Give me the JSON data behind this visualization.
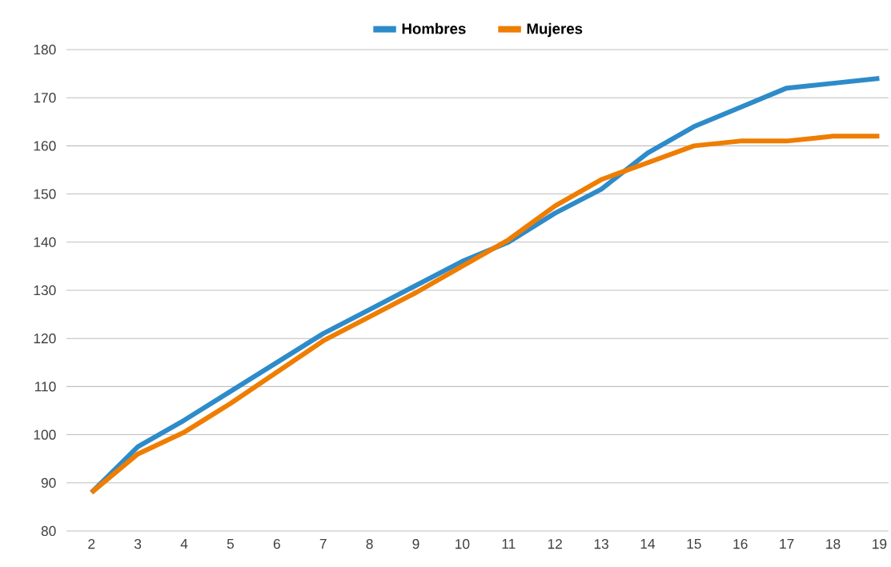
{
  "chart_data": {
    "type": "line",
    "categories": [
      "2",
      "3",
      "4",
      "5",
      "6",
      "7",
      "8",
      "9",
      "10",
      "11",
      "12",
      "13",
      "14",
      "15",
      "16",
      "17",
      "18",
      "19"
    ],
    "series": [
      {
        "name": "Hombres",
        "color": "#2e8bc9",
        "values": [
          88,
          97.5,
          103,
          109,
          115,
          121,
          126,
          131,
          136,
          140,
          146,
          151,
          158.5,
          164,
          168,
          172,
          173,
          174
        ]
      },
      {
        "name": "Mujeres",
        "color": "#ef7d00",
        "values": [
          88,
          96,
          100.5,
          106.5,
          113,
          119.5,
          124.5,
          129.5,
          135,
          140.5,
          147.5,
          153,
          156.5,
          160,
          161,
          161,
          162,
          162
        ]
      }
    ],
    "ylim": [
      80,
      180
    ],
    "yticks": [
      80,
      90,
      100,
      110,
      120,
      130,
      140,
      150,
      160,
      170,
      180
    ],
    "grid": "y",
    "legend": "top",
    "marker": "none",
    "line_style": "solid"
  }
}
